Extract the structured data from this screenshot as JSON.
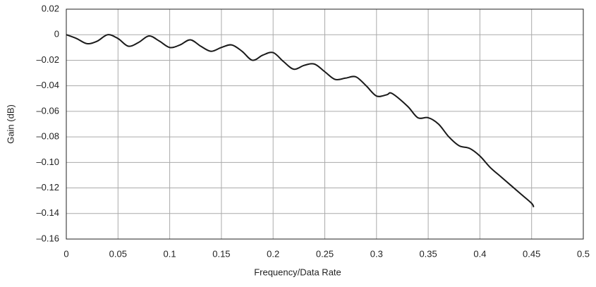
{
  "chart_data": {
    "type": "line",
    "xlabel": "Frequency/Data Rate",
    "ylabel": "Gain (dB)",
    "x": [
      0,
      0.01,
      0.02,
      0.03,
      0.04,
      0.05,
      0.06,
      0.07,
      0.08,
      0.09,
      0.1,
      0.11,
      0.12,
      0.13,
      0.14,
      0.15,
      0.16,
      0.17,
      0.18,
      0.19,
      0.2,
      0.21,
      0.22,
      0.23,
      0.24,
      0.25,
      0.26,
      0.27,
      0.28,
      0.29,
      0.3,
      0.31,
      0.315,
      0.33,
      0.34,
      0.35,
      0.36,
      0.37,
      0.38,
      0.39,
      0.4,
      0.41,
      0.42,
      0.43,
      0.44,
      0.45,
      0.452
    ],
    "series": [
      {
        "color": "#1a1a1a",
        "values": [
          0,
          -0.003,
          -0.007,
          -0.005,
          0,
          -0.003,
          -0.009,
          -0.006,
          -0.001,
          -0.005,
          -0.01,
          -0.008,
          -0.004,
          -0.009,
          -0.013,
          -0.01,
          -0.008,
          -0.013,
          -0.02,
          -0.016,
          -0.014,
          -0.021,
          -0.027,
          -0.024,
          -0.023,
          -0.029,
          -0.035,
          -0.034,
          -0.033,
          -0.04,
          -0.048,
          -0.047,
          -0.046,
          -0.056,
          -0.065,
          -0.065,
          -0.07,
          -0.08,
          -0.087,
          -0.089,
          -0.095,
          -0.104,
          -0.111,
          -0.118,
          -0.125,
          -0.132,
          -0.135
        ]
      }
    ],
    "xlim": [
      0,
      0.5
    ],
    "xticks": [
      0,
      0.05,
      0.1,
      0.15,
      0.2,
      0.25,
      0.3,
      0.35,
      0.4,
      0.45,
      0.5
    ],
    "ylim": [
      -0.16,
      0.02
    ],
    "yticks": [
      {
        "value": -0.16,
        "label": "–0.16"
      },
      {
        "value": -0.14,
        "label": "–0.14"
      },
      {
        "value": -0.12,
        "label": "–0.12"
      },
      {
        "value": -0.1,
        "label": "–0.10"
      },
      {
        "value": -0.08,
        "label": "–0.08"
      },
      {
        "value": -0.06,
        "label": "–0.06"
      },
      {
        "value": -0.04,
        "label": "–0.04"
      },
      {
        "value": -0.02,
        "label": "–0.02"
      },
      0,
      0.02
    ],
    "grid": true
  }
}
